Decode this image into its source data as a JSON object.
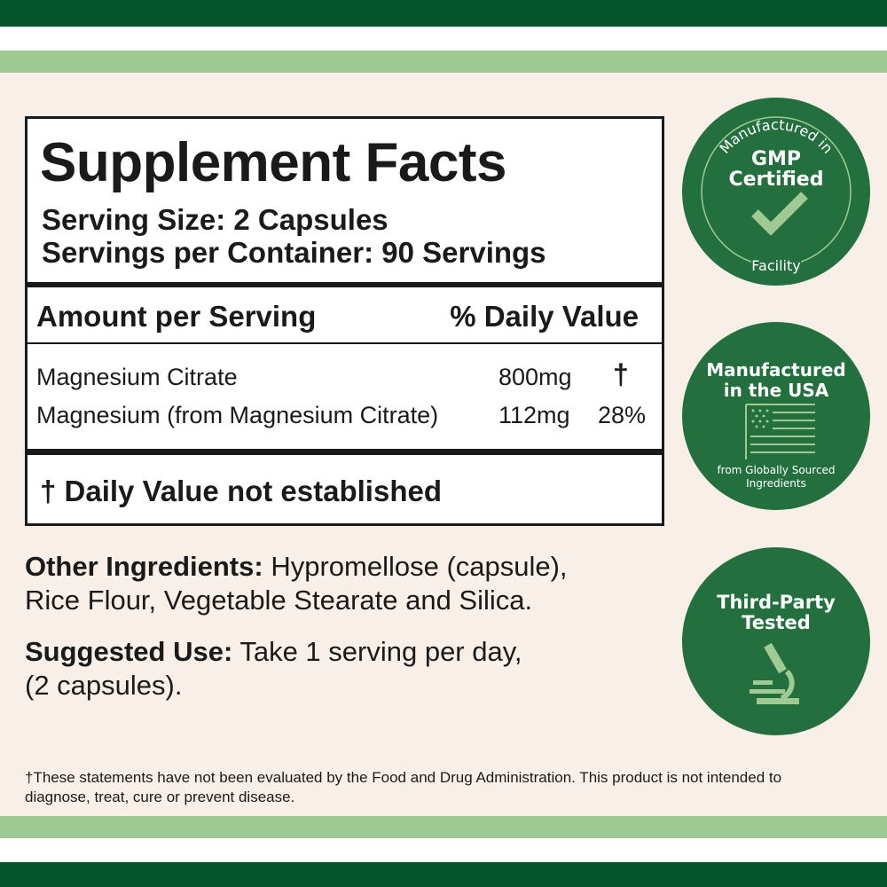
{
  "colors": {
    "dark_green": "#04552c",
    "light_green": "#9fca94",
    "badge_green": "#23703e",
    "badge_accent": "#9fca94",
    "background": "#f8efe8"
  },
  "facts": {
    "title": "Supplement Facts",
    "serving_size": "Serving Size: 2 Capsules",
    "servings_per_container": "Servings per Container: 90 Servings",
    "amount_header": "Amount per Serving",
    "dv_header": "% Daily Value",
    "rows": [
      {
        "name": "Magnesium Citrate",
        "amount": "800mg",
        "dv": "†"
      },
      {
        "name": "Magnesium (from Magnesium Citrate)",
        "amount": "112mg",
        "dv": "28%"
      }
    ],
    "footnote": "† Daily Value not established"
  },
  "other_ingredients": {
    "label": "Other Ingredients:",
    "text": " Hypromellose (capsule),",
    "line2": "Rice Flour, Vegetable Stearate and Silica."
  },
  "suggested_use": {
    "label": "Suggested Use:",
    "text": " Take 1 serving per day,",
    "line2": "(2 capsules)."
  },
  "disclaimer": "†These statements have not been evaluated by the Food and Drug Administration. This product is not intended to diagnose, treat, cure or prevent disease.",
  "badges": [
    {
      "top_arc": "Manufactured in",
      "title1": "GMP",
      "title2": "Certified",
      "bottom_arc": "Facility",
      "icon": "checkmark-icon"
    },
    {
      "title1": "Manufactured",
      "title2": "in the USA",
      "sub1": "from Globally Sourced",
      "sub2": "Ingredients",
      "icon": "us-flag-icon"
    },
    {
      "title1": "Third-Party",
      "title2": "Tested",
      "icon": "microscope-icon"
    }
  ]
}
